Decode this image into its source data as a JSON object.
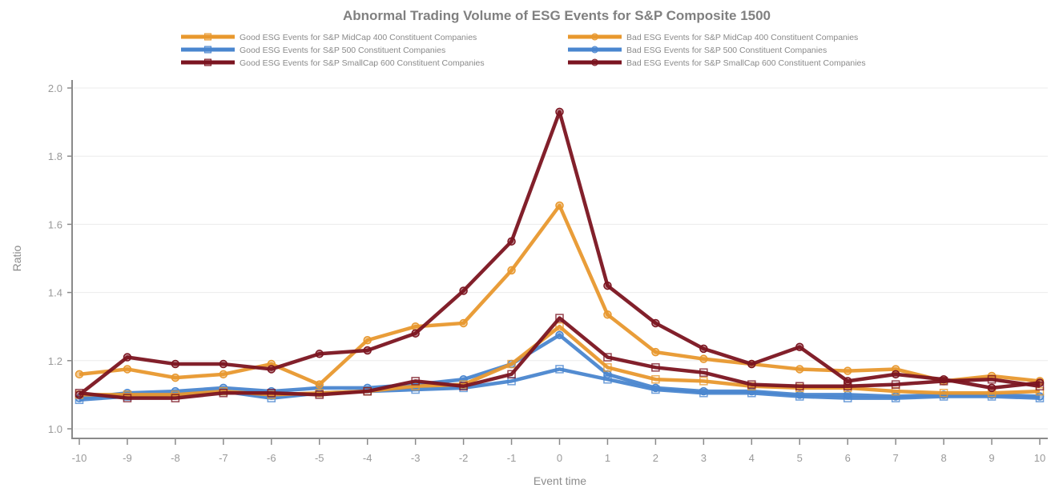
{
  "chart_data": {
    "type": "line",
    "title": "Abnormal Trading Volume of ESG Events for S&P Composite 1500",
    "xlabel": "Event time",
    "ylabel": "Ratio",
    "x": [
      -10,
      -9,
      -8,
      -7,
      -6,
      -5,
      -4,
      -3,
      -2,
      -1,
      0,
      1,
      2,
      3,
      4,
      5,
      6,
      7,
      8,
      9,
      10
    ],
    "xlim": [
      -10,
      10
    ],
    "ylim": [
      1.0,
      2.0
    ],
    "yticks": [
      "1.0",
      "1.2",
      "1.4",
      "1.6",
      "1.8",
      "2.0"
    ],
    "xticks": [
      "-10",
      "-9",
      "-8",
      "-7",
      "-6",
      "-5",
      "-4",
      "-3",
      "-2",
      "-1",
      "0",
      "1",
      "2",
      "3",
      "4",
      "5",
      "6",
      "7",
      "8",
      "9",
      "10"
    ],
    "grid": "horizontal",
    "legend_position": "top-center",
    "series": [
      {
        "name": "Good ESG Events for S&P MidCap 400 Constituent Companies",
        "color": "#E8982E",
        "marker": "square",
        "values": [
          1.1,
          1.1,
          1.1,
          1.11,
          1.1,
          1.105,
          1.11,
          1.125,
          1.13,
          1.19,
          1.3,
          1.18,
          1.145,
          1.14,
          1.125,
          1.12,
          1.12,
          1.11,
          1.105,
          1.105,
          1.11
        ]
      },
      {
        "name": "Bad ESG Events for S&P MidCap 400 Constituent Companies",
        "color": "#E8982E",
        "marker": "circle",
        "values": [
          1.16,
          1.175,
          1.15,
          1.16,
          1.19,
          1.13,
          1.26,
          1.3,
          1.31,
          1.465,
          1.655,
          1.335,
          1.225,
          1.205,
          1.19,
          1.175,
          1.17,
          1.175,
          1.14,
          1.155,
          1.14
        ]
      },
      {
        "name": "Good ESG Events for S&P 500 Constituent Companies",
        "color": "#4A86CF",
        "marker": "square",
        "values": [
          1.085,
          1.095,
          1.1,
          1.11,
          1.09,
          1.105,
          1.11,
          1.115,
          1.12,
          1.14,
          1.175,
          1.145,
          1.115,
          1.105,
          1.105,
          1.095,
          1.09,
          1.09,
          1.095,
          1.095,
          1.09
        ]
      },
      {
        "name": "Bad ESG Events for S&P 500 Constituent Companies",
        "color": "#4A86CF",
        "marker": "circle",
        "values": [
          1.09,
          1.105,
          1.11,
          1.12,
          1.11,
          1.12,
          1.12,
          1.13,
          1.145,
          1.19,
          1.275,
          1.16,
          1.12,
          1.11,
          1.11,
          1.1,
          1.1,
          1.095,
          1.1,
          1.1,
          1.095
        ]
      },
      {
        "name": "Good ESG Events for S&P SmallCap 600 Constituent Companies",
        "color": "#7B1420",
        "marker": "square",
        "values": [
          1.105,
          1.09,
          1.09,
          1.105,
          1.105,
          1.1,
          1.11,
          1.14,
          1.125,
          1.16,
          1.325,
          1.21,
          1.18,
          1.165,
          1.13,
          1.125,
          1.125,
          1.13,
          1.14,
          1.145,
          1.125
        ]
      },
      {
        "name": "Bad ESG Events for S&P SmallCap 600 Constituent Companies",
        "color": "#7B1420",
        "marker": "circle",
        "values": [
          1.1,
          1.21,
          1.19,
          1.19,
          1.175,
          1.22,
          1.23,
          1.28,
          1.405,
          1.55,
          1.93,
          1.42,
          1.31,
          1.235,
          1.19,
          1.24,
          1.14,
          1.16,
          1.145,
          1.12,
          1.135
        ]
      }
    ]
  }
}
